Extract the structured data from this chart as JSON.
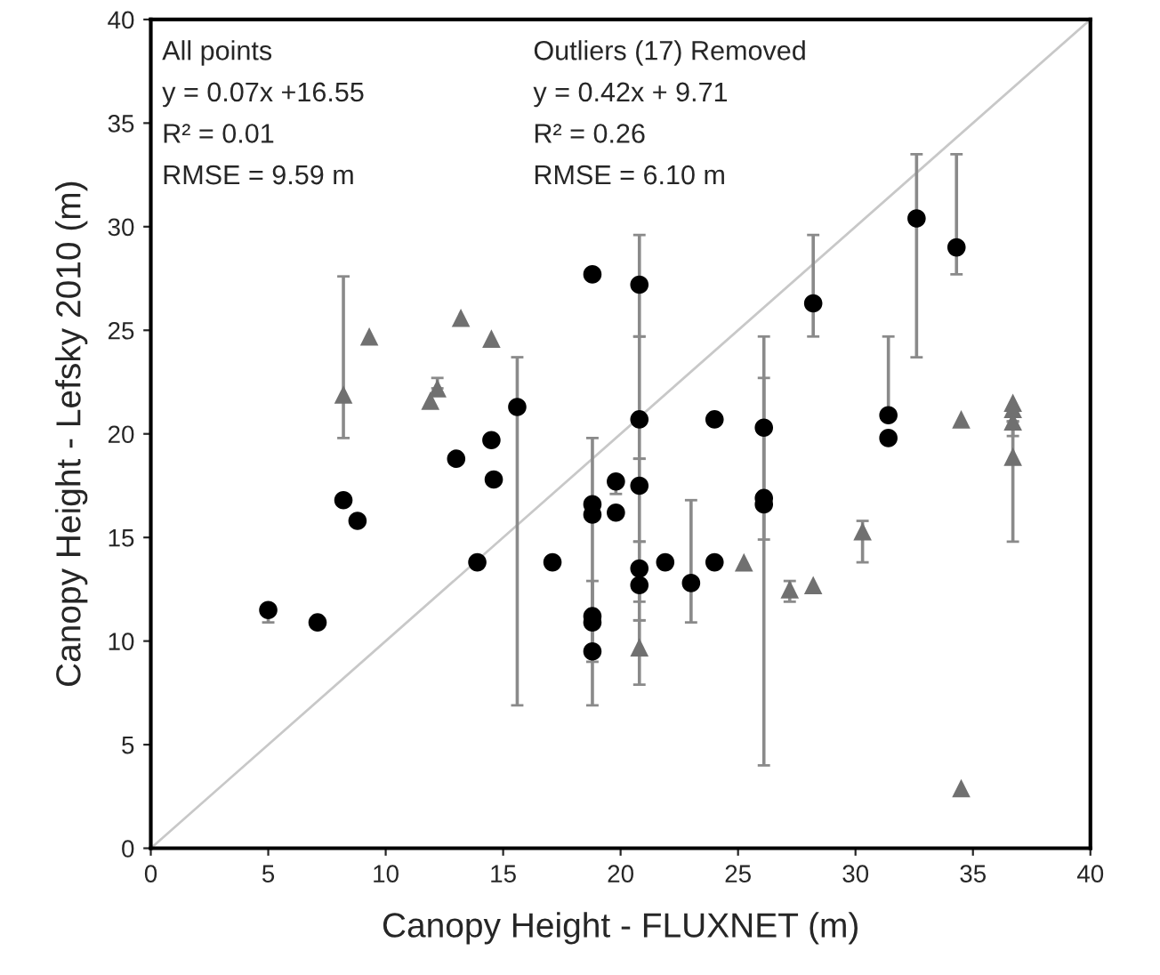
{
  "chart_data": {
    "type": "scatter",
    "xlabel": "Canopy Height - FLUXNET (m)",
    "ylabel": "Canopy Height - Lefsky 2010 (m)",
    "xlim": [
      0,
      40
    ],
    "ylim": [
      0,
      40
    ],
    "xticks": [
      0,
      5,
      10,
      15,
      20,
      25,
      30,
      35,
      40
    ],
    "yticks": [
      0,
      5,
      10,
      15,
      20,
      25,
      30,
      35,
      40
    ],
    "grid": false,
    "legend": false,
    "annotations": [
      "All points",
      "y = 0.07x +16.55",
      "R² = 0.01",
      "RMSE = 9.59 m",
      "Outliers (17) Removed",
      "y = 0.42x + 9.71",
      "R² = 0.26",
      "RMSE = 6.10 m"
    ],
    "series": [
      {
        "type": "line",
        "color": "#c8c8c8",
        "marker": "none",
        "line_style": "solid",
        "x": [
          0,
          40
        ],
        "values": [
          0,
          40
        ]
      },
      {
        "color": "#000000",
        "marker": "circle",
        "x": [
          5.0,
          7.1,
          8.2,
          8.8,
          13.0,
          14.5,
          14.6,
          13.9,
          17.1,
          15.6,
          18.8,
          18.8,
          18.8,
          18.8,
          18.8,
          18.8,
          19.8,
          19.8,
          20.8,
          20.8,
          20.8,
          20.8,
          20.8,
          21.9,
          23.0,
          24.0,
          24.0,
          26.1,
          26.1,
          26.1,
          28.2,
          31.4,
          31.4,
          32.6,
          34.3
        ],
        "values": [
          11.5,
          10.9,
          16.8,
          15.8,
          18.8,
          19.7,
          17.8,
          13.8,
          13.8,
          21.3,
          27.7,
          16.6,
          16.1,
          11.2,
          10.9,
          9.5,
          17.7,
          16.2,
          27.2,
          20.7,
          17.5,
          13.5,
          12.7,
          13.8,
          12.8,
          20.7,
          13.8,
          20.3,
          16.9,
          16.6,
          26.3,
          20.9,
          19.8,
          30.4,
          29.0
        ],
        "errors": [
          [
            10.9,
            11.5
          ],
          null,
          null,
          null,
          null,
          null,
          null,
          null,
          null,
          [
            6.9,
            23.7
          ],
          null,
          [
            6.9,
            19.8
          ],
          null,
          [
            9.0,
            12.9
          ],
          null,
          null,
          [
            17.1,
            17.7
          ],
          null,
          [
            24.7,
            29.6
          ],
          [
            18.8,
            24.7
          ],
          [
            14.8,
            18.8
          ],
          [
            11.9,
            14.8
          ],
          [
            11.0,
            12.7
          ],
          null,
          [
            10.9,
            16.8
          ],
          null,
          null,
          [
            4.0,
            24.7
          ],
          [
            14.9,
            22.7
          ],
          null,
          [
            24.7,
            29.6
          ],
          [
            20.9,
            24.7
          ],
          null,
          [
            23.7,
            33.5
          ],
          [
            27.7,
            33.5
          ]
        ]
      },
      {
        "color": "#707070",
        "marker": "triangle",
        "x": [
          8.2,
          9.3,
          11.9,
          12.2,
          13.2,
          14.5,
          20.8,
          25.25,
          27.2,
          28.2,
          30.3,
          34.5,
          34.5,
          36.7,
          36.7,
          36.7,
          36.7
        ],
        "values": [
          21.9,
          24.7,
          21.6,
          22.2,
          25.6,
          24.6,
          9.7,
          13.8,
          12.5,
          12.7,
          15.3,
          20.7,
          2.9,
          21.5,
          21.2,
          20.6,
          18.9
        ],
        "errors": [
          [
            19.8,
            27.6
          ],
          null,
          null,
          [
            22.2,
            22.7
          ],
          null,
          null,
          [
            7.9,
            11.0
          ],
          null,
          [
            11.9,
            12.9
          ],
          null,
          [
            13.8,
            15.8
          ],
          null,
          null,
          null,
          null,
          [
            19.9,
            20.6
          ],
          [
            14.8,
            20.6
          ]
        ]
      }
    ]
  }
}
